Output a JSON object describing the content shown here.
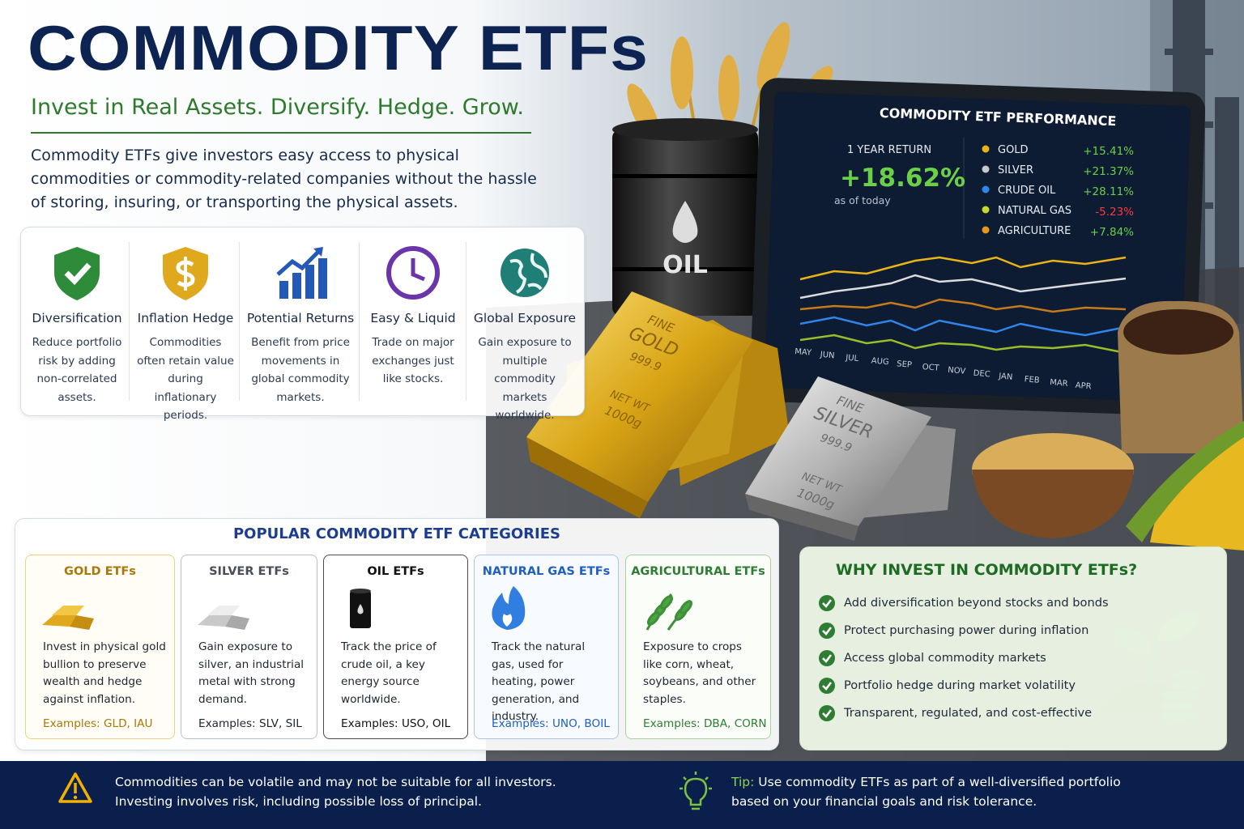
{
  "header": {
    "title": "COMMODITY ETFs",
    "tagline": "Invest in Real Assets. Diversify. Hedge. Grow.",
    "intro": "Commodity ETFs give investors easy access to physical commodities or commodity-related companies without the hassle of storing, insuring, or transporting the physical assets."
  },
  "features": [
    {
      "title": "Diversification",
      "text": "Reduce portfolio risk by adding non-correlated assets."
    },
    {
      "title": "Inflation Hedge",
      "text": "Commodities often retain value during inflationary periods."
    },
    {
      "title": "Potential Returns",
      "text": "Benefit from price movements in global commodity markets."
    },
    {
      "title": "Easy & Liquid",
      "text": "Trade on major exchanges just like stocks."
    },
    {
      "title": "Global Exposure",
      "text": "Gain exposure to multiple commodity markets worldwide."
    }
  ],
  "illustration": {
    "barrel_label": "OIL",
    "gold_bar": [
      "FINE",
      "GOLD",
      "999.9",
      "NET WT",
      "1000g"
    ],
    "silver_bar": [
      "FINE",
      "SILVER",
      "999.9",
      "NET WT",
      "1000g"
    ]
  },
  "performance": {
    "title": "COMMODITY ETF PERFORMANCE",
    "return_label": "1 YEAR RETURN",
    "return_value": "+18.62%",
    "as_of": "as of today",
    "items": [
      {
        "name": "GOLD",
        "change": "+15.41%",
        "color": "#e8b416"
      },
      {
        "name": "SILVER",
        "change": "+21.37%",
        "color": "#c9c9c9"
      },
      {
        "name": "CRUDE OIL",
        "change": "+28.11%",
        "color": "#2f86e8"
      },
      {
        "name": "NATURAL GAS",
        "change": "-5.23%",
        "color": "#c8d82a"
      },
      {
        "name": "AGRICULTURE",
        "change": "+7.84%",
        "color": "#e39a1b"
      }
    ],
    "months": [
      "MAY",
      "JUN",
      "JUL",
      "AUG",
      "SEP",
      "OCT",
      "NOV",
      "DEC",
      "JAN",
      "FEB",
      "MAR",
      "APR"
    ]
  },
  "categories": {
    "title": "POPULAR COMMODITY ETF CATEGORIES",
    "items": [
      {
        "name": "GOLD ETFs",
        "text": "Invest in physical gold bullion to preserve wealth and hedge against inflation.",
        "examples": "Examples: GLD, IAU"
      },
      {
        "name": "SILVER ETFs",
        "text": "Gain exposure to silver, an industrial metal with strong demand.",
        "examples": "Examples: SLV, SIL"
      },
      {
        "name": "OIL ETFs",
        "text": "Track the price of crude oil, a key energy source worldwide.",
        "examples": "Examples: USO, OIL"
      },
      {
        "name": "NATURAL GAS ETFs",
        "text": "Track the natural gas, used for heating, power generation, and industry.",
        "examples": "Examples: UNO, BOIL"
      },
      {
        "name": "AGRICULTURAL ETFs",
        "text": "Exposure to crops like corn, wheat, soybeans, and other staples.",
        "examples": "Examples: DBA, CORN"
      }
    ]
  },
  "why": {
    "title": "WHY INVEST IN COMMODITY ETFs?",
    "items": [
      "Add diversification beyond stocks and bonds",
      "Protect purchasing power during inflation",
      "Access global commodity markets",
      "Portfolio hedge during market volatility",
      "Transparent, regulated, and cost-effective"
    ]
  },
  "footer": {
    "warning": [
      "Commodities can be volatile and may not be suitable for all investors.",
      "Investing involves risk, including possible loss of principal."
    ],
    "tip_label": "Tip:",
    "tip": [
      "Use commodity ETFs as part of a well-diversified portfolio",
      "based on your financial goals and risk tolerance."
    ]
  }
}
